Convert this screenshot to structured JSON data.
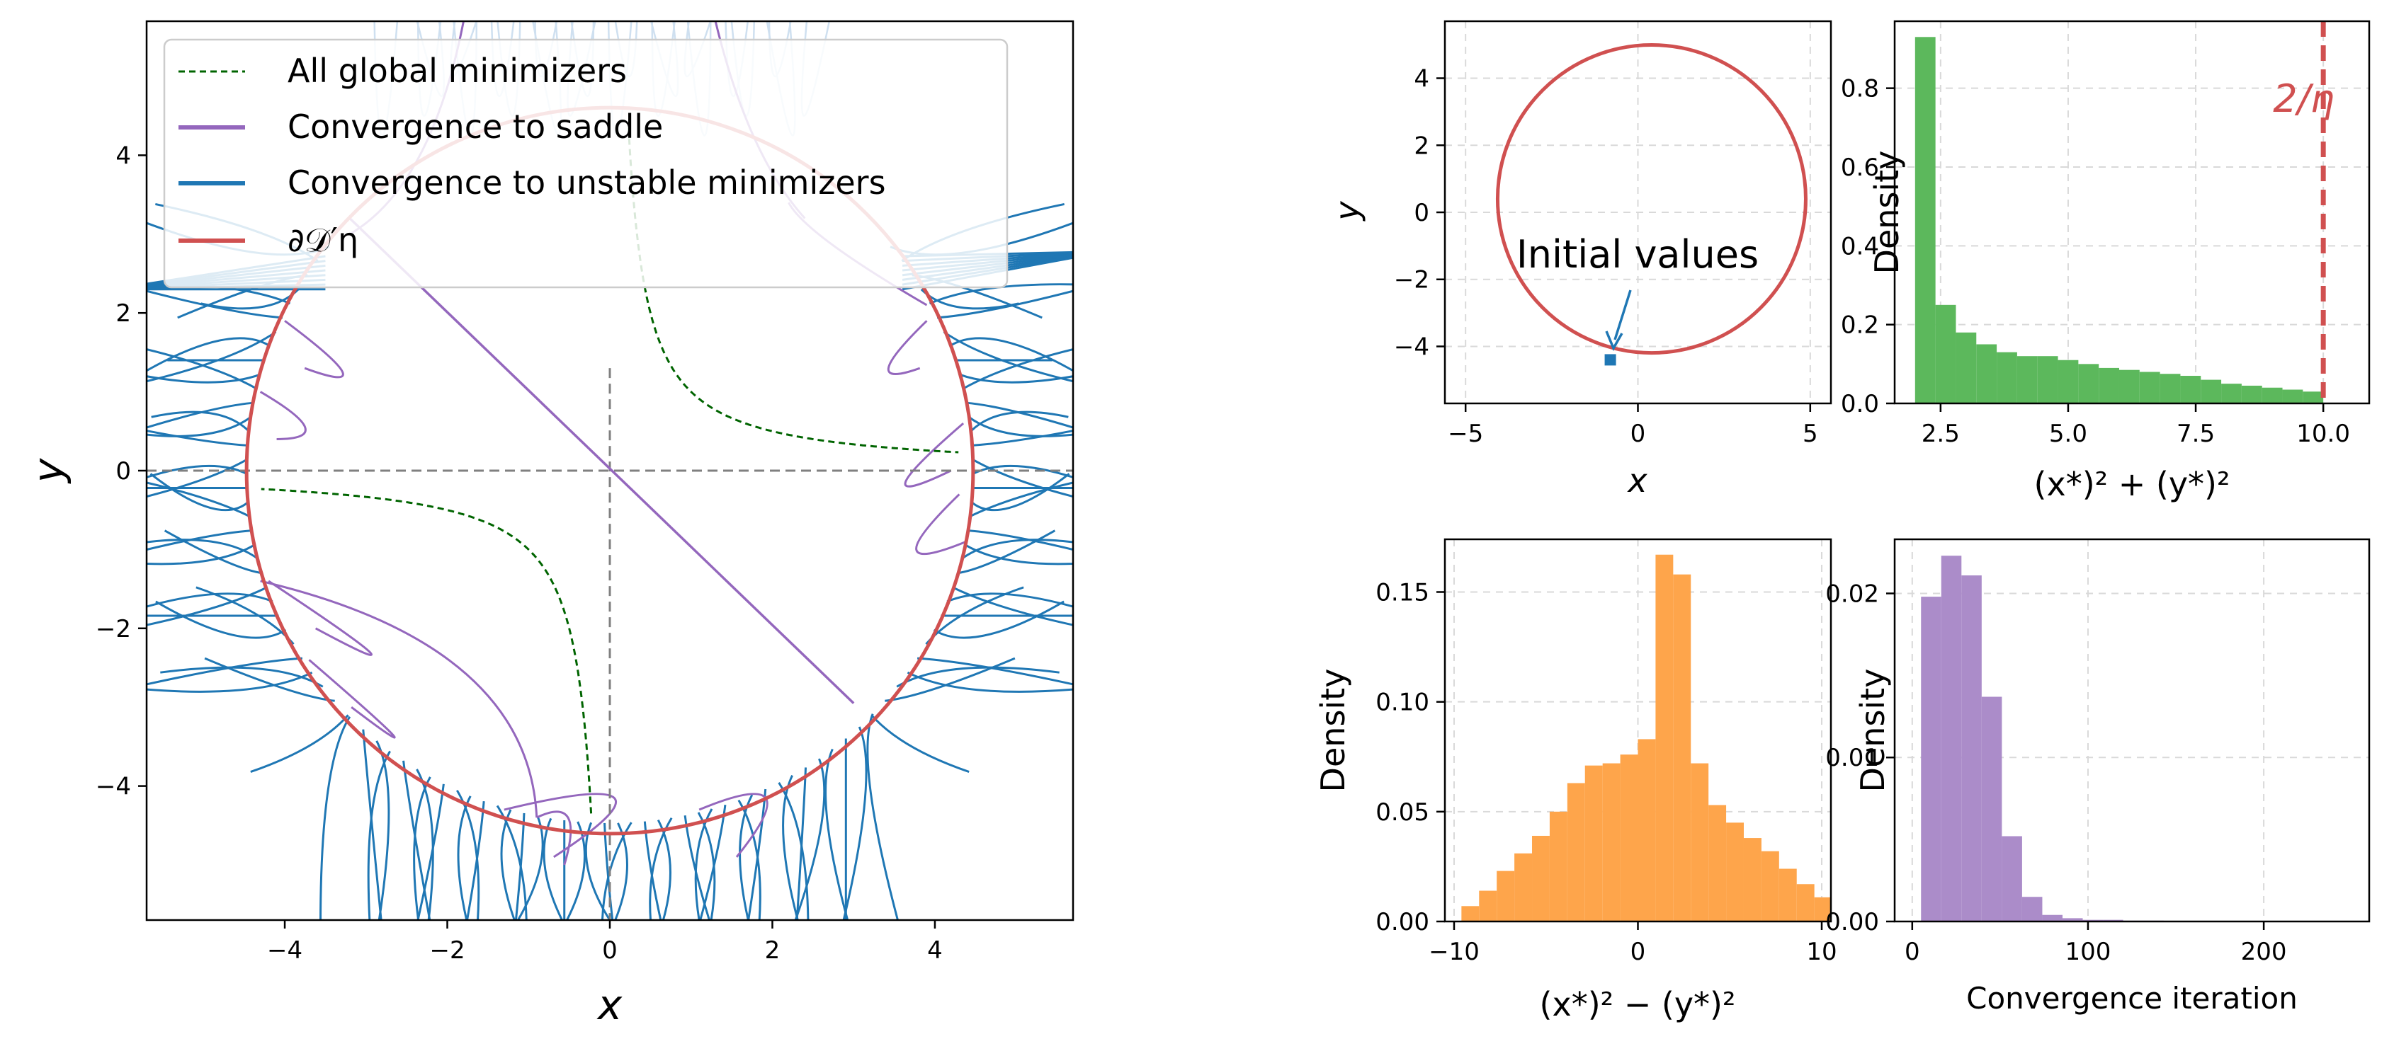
{
  "chart_data": [
    {
      "type": "line",
      "subplot": "main",
      "xlabel": "x",
      "ylabel": "y",
      "xlim": [
        -5.7,
        5.7
      ],
      "ylim": [
        -5.7,
        5.7
      ],
      "xticks": [
        -4,
        -2,
        0,
        2,
        4
      ],
      "yticks": [
        -4,
        -2,
        0,
        2,
        4
      ],
      "grid": false,
      "legend_position": "top-left",
      "legend": [
        {
          "label": "All global minimizers",
          "color": "#006400",
          "style": "dashed"
        },
        {
          "label": "Convergence to saddle",
          "color": "#9467bd",
          "style": "solid"
        },
        {
          "label": "Convergence to unstable minimizers",
          "color": "#1f77b4",
          "style": "solid"
        },
        {
          "label": "∂𝒟′η",
          "color": "#d05050",
          "style": "solid"
        }
      ],
      "boundary_circle": {
        "center": [
          0,
          0
        ],
        "radius": 4.47
      },
      "global_minimizers_curve": "xy = 1",
      "axes_lines": {
        "x": 0,
        "y": 0
      },
      "saddle_path": [
        [
          3.0,
          -2.95
        ],
        [
          0,
          0
        ],
        [
          -3.2,
          3.2
        ]
      ]
    },
    {
      "type": "scatter",
      "subplot": "initial-values",
      "xlabel": "x",
      "ylabel": "y",
      "xlim": [
        -5.6,
        5.6
      ],
      "ylim": [
        -5.7,
        5.7
      ],
      "xticks": [
        -5,
        0,
        5
      ],
      "yticks": [
        -4,
        -2,
        0,
        2,
        4
      ],
      "grid": true,
      "circle": {
        "center": [
          0.4,
          0.4
        ],
        "radius": 4.47
      },
      "points": [
        [
          -0.8,
          -4.4
        ]
      ],
      "annotation": "Initial values"
    },
    {
      "type": "bar",
      "subplot": "norm-histogram",
      "xlabel": "(x*)² + (y*)²",
      "ylabel": "Density",
      "xlim": [
        1.6,
        10.9
      ],
      "ylim": [
        0,
        0.97
      ],
      "xticks": [
        2.5,
        5.0,
        7.5,
        10.0
      ],
      "yticks": [
        0.0,
        0.2,
        0.4,
        0.6,
        0.8
      ],
      "color": "#5cb85c",
      "bin_start": 2.0,
      "bin_width": 0.4,
      "values": [
        0.93,
        0.25,
        0.18,
        0.15,
        0.13,
        0.12,
        0.12,
        0.11,
        0.1,
        0.09,
        0.085,
        0.08,
        0.075,
        0.07,
        0.06,
        0.05,
        0.045,
        0.04,
        0.035,
        0.03
      ],
      "vline": {
        "x": 10.0,
        "label": "2/η",
        "color": "#d05050"
      }
    },
    {
      "type": "bar",
      "subplot": "difference-histogram",
      "xlabel": "(x*)² − (y*)²",
      "ylabel": "Density",
      "xlim": [
        -10.5,
        10.5
      ],
      "ylim": [
        0,
        0.174
      ],
      "xticks": [
        -10,
        0,
        10
      ],
      "yticks": [
        0.0,
        0.05,
        0.1,
        0.15
      ],
      "color": "#fea54b",
      "bin_start": -9.6,
      "bin_width": 0.96,
      "values": [
        0.007,
        0.014,
        0.023,
        0.031,
        0.039,
        0.05,
        0.063,
        0.071,
        0.072,
        0.076,
        0.083,
        0.167,
        0.158,
        0.072,
        0.053,
        0.045,
        0.038,
        0.032,
        0.024,
        0.017,
        0.011,
        0.002
      ]
    },
    {
      "type": "bar",
      "subplot": "iteration-histogram",
      "xlabel": "Convergence iteration",
      "ylabel": "Density",
      "xlim": [
        -10,
        260
      ],
      "ylim": [
        0,
        0.0233
      ],
      "xticks": [
        0,
        100,
        200
      ],
      "yticks": [
        0.0,
        0.01,
        0.02
      ],
      "color": "#ab8cc9",
      "bin_start": 5,
      "bin_width": 11.5,
      "values": [
        0.0198,
        0.0223,
        0.0211,
        0.0137,
        0.0052,
        0.0015,
        0.0004,
        0.0002,
        0.0001,
        0.0001,
        5e-05,
        5e-05,
        3e-05,
        2e-05,
        2e-05,
        1e-05,
        1e-05,
        1e-05
      ]
    }
  ]
}
